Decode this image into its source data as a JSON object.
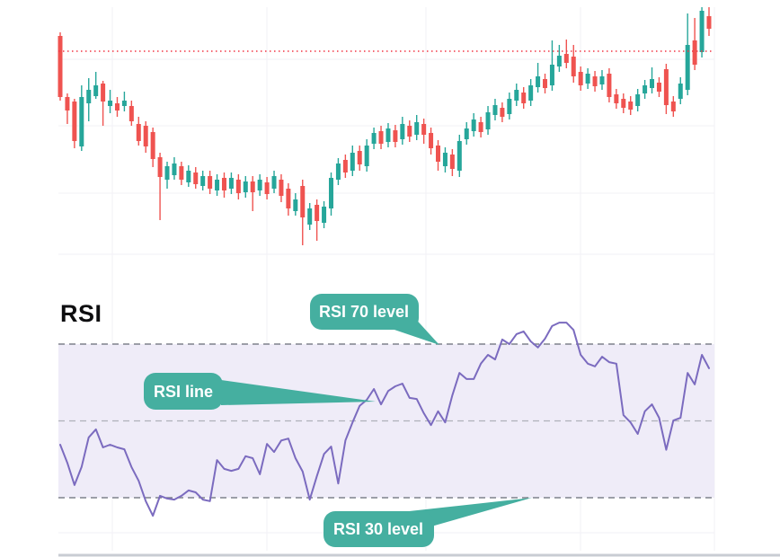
{
  "page": {
    "background": "#ffffff"
  },
  "rsi_panel": {
    "title": "RSI"
  },
  "annotations": {
    "rsi70": {
      "label": "RSI 70 level"
    },
    "rsi_line": {
      "label": "RSI line"
    },
    "rsi30": {
      "label": "RSI 30 level"
    }
  },
  "colors": {
    "candle_up": "#26a69a",
    "candle_down": "#ef5350",
    "last_price_line": "#f23645",
    "rsi_line": "#7b6bbf",
    "rsi_band_fill": "#efecf8",
    "level_dash": "#7f828c",
    "mid_dash": "#aeb1ba",
    "grid": "#f2f1f5",
    "callout_fill": "#45afa0",
    "callout_text": "#ffffff",
    "panel_divider": "#c9ccd3",
    "title_text": "#0e0e10"
  },
  "chart_data": [
    {
      "type": "candlestick",
      "title": "Price panel (no axis labels shown in image)",
      "ylim": [
        0,
        290
      ],
      "grid": true,
      "legend": false,
      "last_price_level": 233,
      "candles_ohlc": [
        [
          250,
          254,
          178,
          182
        ],
        [
          182,
          186,
          152,
          167
        ],
        [
          177,
          180,
          125,
          133
        ],
        [
          127,
          195,
          122,
          182
        ],
        [
          175,
          203,
          155,
          190
        ],
        [
          183,
          210,
          180,
          195
        ],
        [
          197,
          200,
          150,
          177
        ],
        [
          172,
          190,
          164,
          178
        ],
        [
          175,
          182,
          160,
          167
        ],
        [
          172,
          188,
          166,
          178
        ],
        [
          172,
          178,
          150,
          155
        ],
        [
          152,
          160,
          128,
          133
        ],
        [
          150,
          155,
          120,
          127
        ],
        [
          143,
          148,
          104,
          113
        ],
        [
          115,
          120,
          45,
          93
        ],
        [
          90,
          110,
          80,
          105
        ],
        [
          95,
          115,
          90,
          108
        ],
        [
          105,
          110,
          84,
          90
        ],
        [
          87,
          106,
          82,
          100
        ],
        [
          98,
          104,
          80,
          85
        ],
        [
          83,
          100,
          78,
          94
        ],
        [
          94,
          100,
          74,
          80
        ],
        [
          78,
          96,
          72,
          90
        ],
        [
          92,
          98,
          70,
          78
        ],
        [
          80,
          98,
          74,
          92
        ],
        [
          90,
          96,
          68,
          75
        ],
        [
          76,
          94,
          70,
          88
        ],
        [
          88,
          94,
          55,
          76
        ],
        [
          78,
          96,
          72,
          90
        ],
        [
          87,
          93,
          68,
          74
        ],
        [
          80,
          100,
          75,
          94
        ],
        [
          90,
          96,
          65,
          72
        ],
        [
          80,
          86,
          50,
          58
        ],
        [
          55,
          75,
          50,
          68
        ],
        [
          83,
          90,
          17,
          48
        ],
        [
          40,
          64,
          34,
          58
        ],
        [
          62,
          68,
          22,
          44
        ],
        [
          42,
          66,
          36,
          60
        ],
        [
          58,
          98,
          50,
          92
        ],
        [
          90,
          114,
          84,
          108
        ],
        [
          112,
          118,
          92,
          98
        ],
        [
          100,
          128,
          94,
          120
        ],
        [
          122,
          128,
          100,
          107
        ],
        [
          105,
          135,
          99,
          128
        ],
        [
          130,
          148,
          124,
          142
        ],
        [
          144,
          150,
          124,
          130
        ],
        [
          132,
          153,
          126,
          147
        ],
        [
          145,
          151,
          126,
          132
        ],
        [
          135,
          160,
          129,
          152
        ],
        [
          150,
          156,
          132,
          138
        ],
        [
          140,
          162,
          134,
          154
        ],
        [
          152,
          158,
          130,
          140
        ],
        [
          142,
          148,
          118,
          125
        ],
        [
          128,
          134,
          100,
          110
        ],
        [
          105,
          126,
          98,
          120
        ],
        [
          118,
          124,
          94,
          102
        ],
        [
          100,
          140,
          93,
          133
        ],
        [
          135,
          154,
          129,
          147
        ],
        [
          144,
          164,
          138,
          157
        ],
        [
          154,
          160,
          137,
          143
        ],
        [
          146,
          172,
          140,
          165
        ],
        [
          162,
          180,
          156,
          173
        ],
        [
          170,
          176,
          154,
          160
        ],
        [
          163,
          187,
          157,
          180
        ],
        [
          178,
          197,
          172,
          190
        ],
        [
          187,
          193,
          169,
          175
        ],
        [
          178,
          202,
          172,
          195
        ],
        [
          193,
          220,
          187,
          205
        ],
        [
          202,
          208,
          186,
          192
        ],
        [
          195,
          245,
          189,
          218
        ],
        [
          216,
          240,
          210,
          228
        ],
        [
          230,
          246,
          214,
          220
        ],
        [
          227,
          240,
          198,
          205
        ],
        [
          210,
          216,
          189,
          195
        ],
        [
          197,
          214,
          191,
          208
        ],
        [
          205,
          211,
          188,
          194
        ],
        [
          196,
          212,
          190,
          205
        ],
        [
          208,
          214,
          176,
          182
        ],
        [
          185,
          191,
          169,
          175
        ],
        [
          180,
          186,
          164,
          170
        ],
        [
          177,
          183,
          162,
          168
        ],
        [
          172,
          191,
          166,
          185
        ],
        [
          186,
          201,
          180,
          195
        ],
        [
          192,
          215,
          186,
          202
        ],
        [
          198,
          204,
          182,
          188
        ],
        [
          213,
          219,
          163,
          173
        ],
        [
          177,
          183,
          160,
          166
        ],
        [
          180,
          204,
          174,
          197
        ],
        [
          190,
          275,
          184,
          240
        ],
        [
          245,
          270,
          212,
          218
        ],
        [
          232,
          282,
          226,
          278
        ],
        [
          272,
          282,
          250,
          258
        ]
      ]
    },
    {
      "type": "line",
      "title": "RSI",
      "xlabel": "",
      "ylabel": "",
      "ylim": [
        16,
        83
      ],
      "grid": true,
      "legend": false,
      "levels": {
        "rsi_70": 70,
        "rsi_50": 50,
        "rsi_30": 30
      },
      "band": [
        30,
        70
      ],
      "series": [
        {
          "name": "RSI",
          "values": [
            43.8,
            39.1,
            33.3,
            38.0,
            45.7,
            47.8,
            43.1,
            43.8,
            43.1,
            42.6,
            38.0,
            34.4,
            29.1,
            25.3,
            30.5,
            29.8,
            29.5,
            30.5,
            31.9,
            31.4,
            29.5,
            29.1,
            39.8,
            37.5,
            37.0,
            37.5,
            40.8,
            40.3,
            36.1,
            44.0,
            41.9,
            44.9,
            45.4,
            40.3,
            36.8,
            29.5,
            35.6,
            41.4,
            43.3,
            33.7,
            44.9,
            49.6,
            53.9,
            55.5,
            58.3,
            54.3,
            57.8,
            59.0,
            59.7,
            56.0,
            55.7,
            52.0,
            48.9,
            52.5,
            49.6,
            56.7,
            62.5,
            60.9,
            60.9,
            64.9,
            67.2,
            66.0,
            71.2,
            70.0,
            72.6,
            73.3,
            70.7,
            69.1,
            71.4,
            74.7,
            75.6,
            75.6,
            73.7,
            67.2,
            64.9,
            64.2,
            66.7,
            65.3,
            64.9,
            51.5,
            49.6,
            46.6,
            52.5,
            54.3,
            50.8,
            42.5,
            50.1,
            50.8,
            62.5,
            59.5,
            67.2,
            63.7
          ]
        }
      ]
    }
  ]
}
